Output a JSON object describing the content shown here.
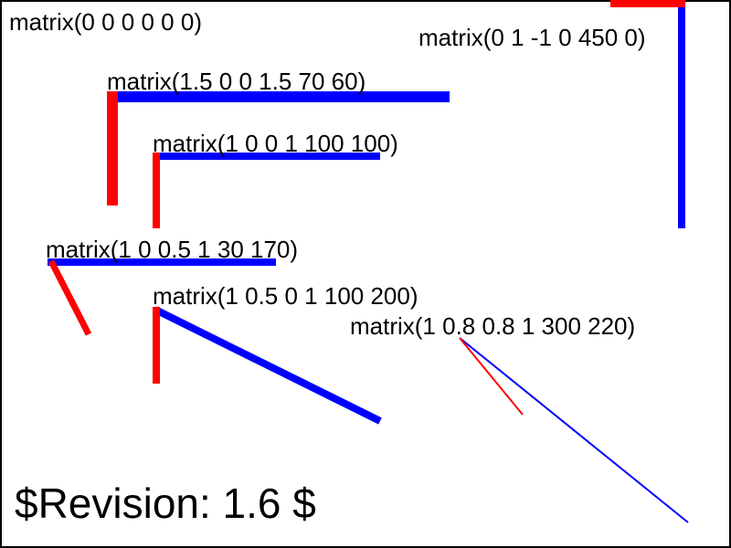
{
  "colors": {
    "x_axis": "#0000ff",
    "y_axis": "#ff0000",
    "text": "#000000",
    "frame": "#000000",
    "background": "#ffffff"
  },
  "groups": [
    {
      "key": "g0",
      "label": "matrix(0 0 0 0 0 0)"
    },
    {
      "key": "g1",
      "label": "matrix(0 1 -1 0 450 0)"
    },
    {
      "key": "g2",
      "label": "matrix(1.5 0 0 1.5 70 60)"
    },
    {
      "key": "g3",
      "label": "matrix(1 0 0 1 100 100)"
    },
    {
      "key": "g4",
      "label": "matrix(1 0 0.5 1 30 170)"
    },
    {
      "key": "g5",
      "label": "matrix(1 0.5 0 1 100 200)"
    },
    {
      "key": "g6",
      "label": "matrix(1 0.8 0.8 1 300 220)"
    }
  ],
  "revision": "$Revision: 1.6 $"
}
